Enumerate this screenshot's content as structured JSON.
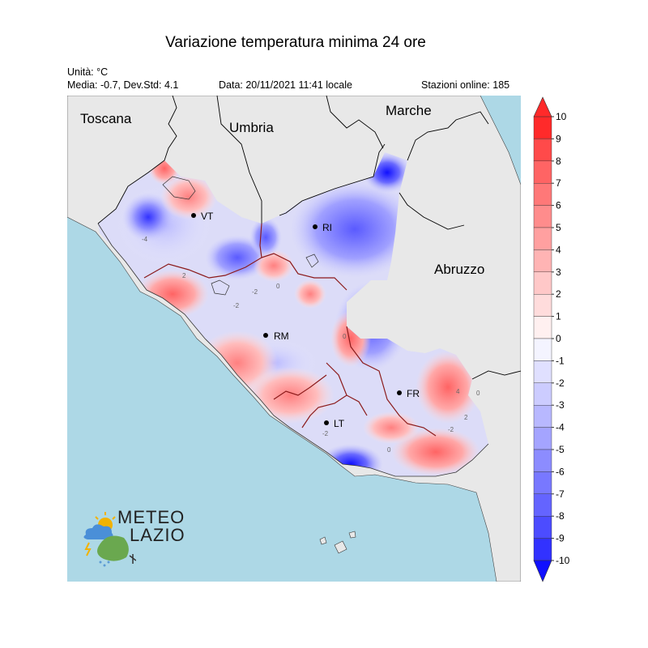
{
  "title": "Variazione temperatura minima 24 ore",
  "info": {
    "unit": "Unità: °C",
    "stats": "Media: -0.7, Dev.Std: 4.1",
    "date": "Data: 20/11/2021 11:41 locale",
    "stations": "Stazioni online: 185"
  },
  "regions": {
    "toscana": "Toscana",
    "umbria": "Umbria",
    "marche": "Marche",
    "abruzzo": "Abruzzo"
  },
  "cities": {
    "vt": "VT",
    "ri": "RI",
    "rm": "RM",
    "fr": "FR",
    "lt": "LT"
  },
  "contour_labels": [
    "-4",
    "0",
    "-2",
    "2",
    "-2",
    "0",
    "-2",
    "0",
    "4",
    "2",
    "-2",
    "0"
  ],
  "colorbar": {
    "ticks": [
      "10",
      "9",
      "8",
      "7",
      "6",
      "5",
      "4",
      "3",
      "2",
      "1",
      "0",
      "-1",
      "-2",
      "-3",
      "-4",
      "-5",
      "-6",
      "-7",
      "-8",
      "-9",
      "-10"
    ],
    "colors": [
      "#ff2a2a",
      "#ff4a4a",
      "#ff6464",
      "#ff7878",
      "#ff8c8c",
      "#ffa0a0",
      "#ffb4b4",
      "#ffc8c8",
      "#ffdcdc",
      "#fff0f0",
      "#f4f4ff",
      "#e0e0ff",
      "#ccccff",
      "#b8b8ff",
      "#a4a4ff",
      "#8c8cff",
      "#7878ff",
      "#6464ff",
      "#4c4cff",
      "#3232ff"
    ]
  },
  "logo": {
    "line1": "METEO",
    "line2": "LAZIO"
  },
  "colors": {
    "sea": "#add8e6",
    "land": "#e8e8e8",
    "region_border": "#8b1a1a"
  }
}
